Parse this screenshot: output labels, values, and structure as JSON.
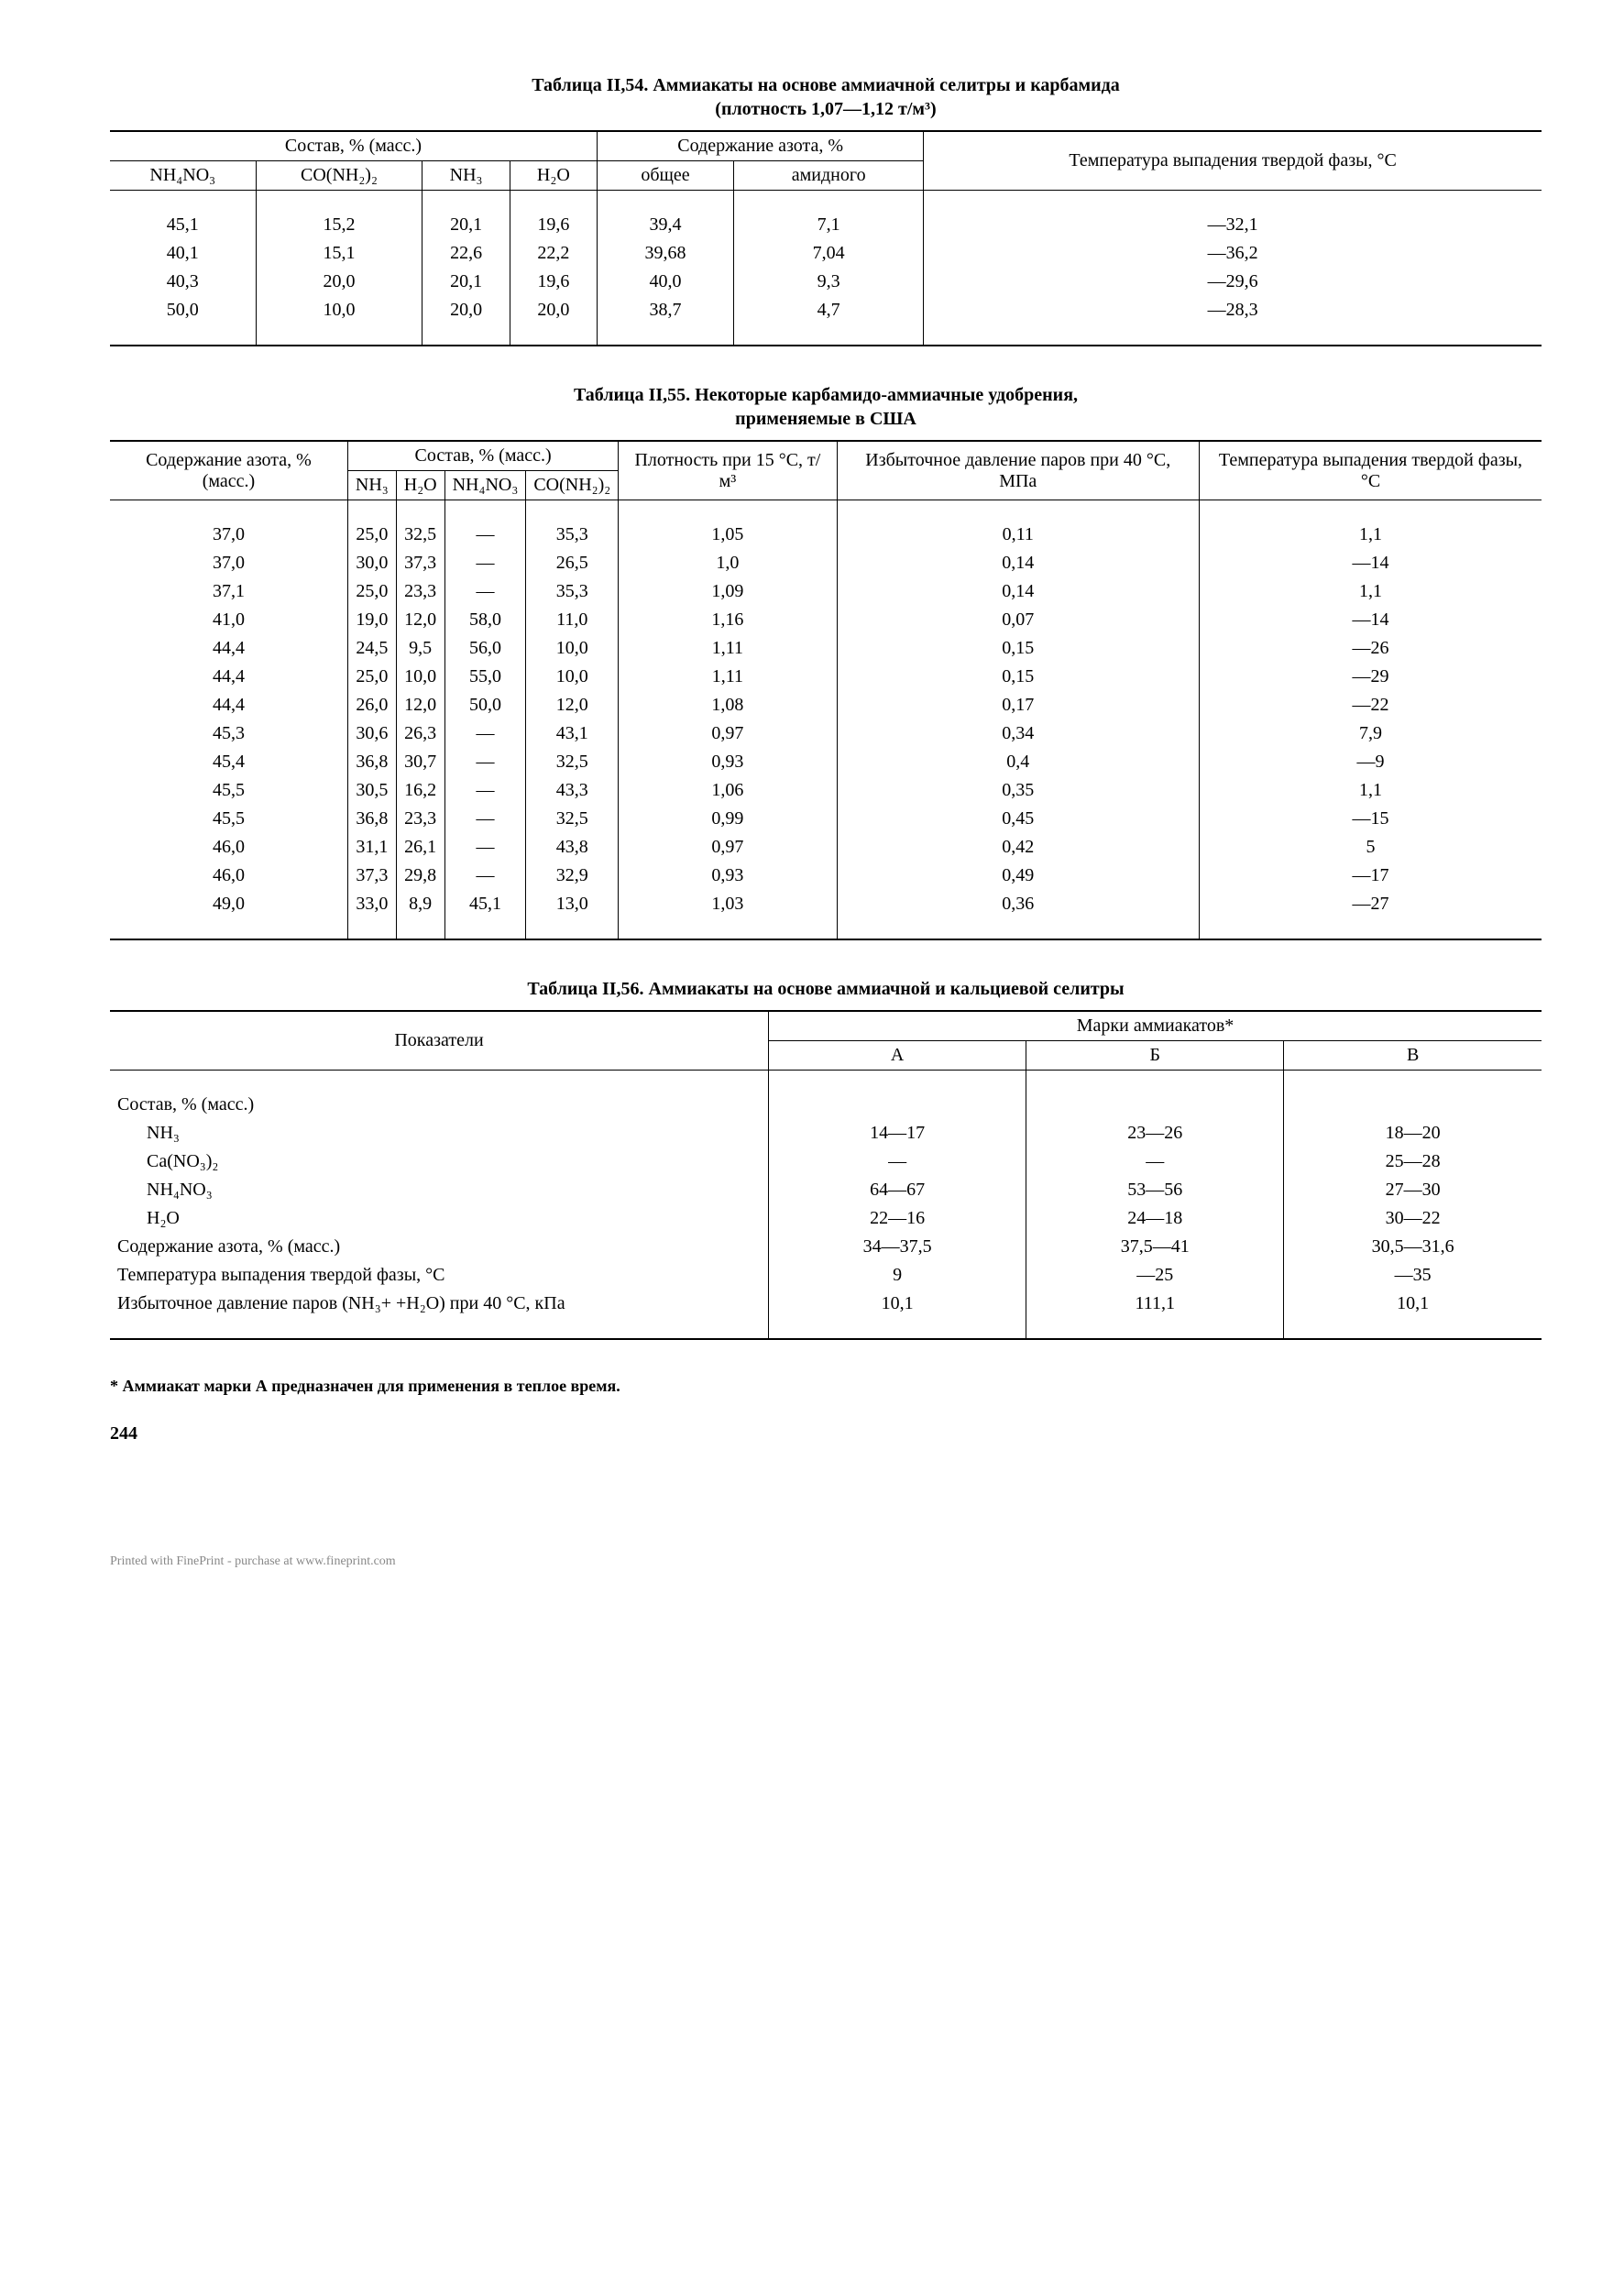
{
  "page_number": "244",
  "footer_text": "Printed with FinePrint - purchase at www.fineprint.com",
  "t54": {
    "title_line1": "Таблица II,54. Аммиакаты на основе аммиачной селитры и карбамида",
    "title_line2": "(плотность 1,07—1,12 т/м³)",
    "headers": {
      "group_comp": "Состав, % (масс.)",
      "group_n": "Содержание азота, %",
      "temp": "Температура выпадения твердой фазы, °C",
      "c1": "NH₄NO₃",
      "c2": "CO(NH₂)₂",
      "c3": "NH₃",
      "c4": "H₂O",
      "c5": "общее",
      "c6": "амидного"
    },
    "rows": [
      [
        "45,1",
        "15,2",
        "20,1",
        "19,6",
        "39,4",
        "7,1",
        "—32,1"
      ],
      [
        "40,1",
        "15,1",
        "22,6",
        "22,2",
        "39,68",
        "7,04",
        "—36,2"
      ],
      [
        "40,3",
        "20,0",
        "20,1",
        "19,6",
        "40,0",
        "9,3",
        "—29,6"
      ],
      [
        "50,0",
        "10,0",
        "20,0",
        "20,0",
        "38,7",
        "4,7",
        "—28,3"
      ]
    ]
  },
  "t55": {
    "title_line1": "Таблица II,55. Некоторые карбамидо-аммиачные удобрения,",
    "title_line2": "применяемые в США",
    "headers": {
      "nmass": "Содержание азота, % (масс.)",
      "group_comp": "Состав, % (масс.)",
      "c1": "NH₃",
      "c2": "H₂O",
      "c3": "NH₄NO₃",
      "c4": "CO(NH₂)₂",
      "dens": "Плотность при 15 °C, т/м³",
      "press": "Избыточное давление паров при 40 °C, МПа",
      "temp": "Температура выпадения твердой фазы, °C"
    },
    "rows": [
      [
        "37,0",
        "25,0",
        "32,5",
        "—",
        "35,3",
        "1,05",
        "0,11",
        "1,1"
      ],
      [
        "37,0",
        "30,0",
        "37,3",
        "—",
        "26,5",
        "1,0",
        "0,14",
        "—14"
      ],
      [
        "37,1",
        "25,0",
        "23,3",
        "—",
        "35,3",
        "1,09",
        "0,14",
        "1,1"
      ],
      [
        "41,0",
        "19,0",
        "12,0",
        "58,0",
        "11,0",
        "1,16",
        "0,07",
        "—14"
      ],
      [
        "44,4",
        "24,5",
        "9,5",
        "56,0",
        "10,0",
        "1,11",
        "0,15",
        "—26"
      ],
      [
        "44,4",
        "25,0",
        "10,0",
        "55,0",
        "10,0",
        "1,11",
        "0,15",
        "—29"
      ],
      [
        "44,4",
        "26,0",
        "12,0",
        "50,0",
        "12,0",
        "1,08",
        "0,17",
        "—22"
      ],
      [
        "45,3",
        "30,6",
        "26,3",
        "—",
        "43,1",
        "0,97",
        "0,34",
        "7,9"
      ],
      [
        "45,4",
        "36,8",
        "30,7",
        "—",
        "32,5",
        "0,93",
        "0,4",
        "—9"
      ],
      [
        "45,5",
        "30,5",
        "16,2",
        "—",
        "43,3",
        "1,06",
        "0,35",
        "1,1"
      ],
      [
        "45,5",
        "36,8",
        "23,3",
        "—",
        "32,5",
        "0,99",
        "0,45",
        "—15"
      ],
      [
        "46,0",
        "31,1",
        "26,1",
        "—",
        "43,8",
        "0,97",
        "0,42",
        "5"
      ],
      [
        "46,0",
        "37,3",
        "29,8",
        "—",
        "32,9",
        "0,93",
        "0,49",
        "—17"
      ],
      [
        "49,0",
        "33,0",
        "8,9",
        "45,1",
        "13,0",
        "1,03",
        "0,36",
        "—27"
      ]
    ]
  },
  "t56": {
    "title": "Таблица II,56. Аммиакаты на основе аммиачной и кальциевой селитры",
    "headers": {
      "ind": "Показатели",
      "group": "Марки аммиакатов*",
      "a": "А",
      "b": "Б",
      "v": "В"
    },
    "indicators": {
      "comp": "Состав, % (масс.)",
      "nh3": "NH₃",
      "cano3": "Ca(NO₃)₂",
      "nh4no3": "NH₄NO₃",
      "h2o": "H₂O",
      "ncont": "Содержание азота, % (масс.)",
      "temp": "Температура выпадения твердой фазы, °C",
      "press": "Избыточное давление паров (NH₃+ +H₂O) при 40 °C, кПа"
    },
    "data": {
      "nh3": [
        "14—17",
        "23—26",
        "18—20"
      ],
      "cano3": [
        "—",
        "—",
        "25—28"
      ],
      "nh4no3": [
        "64—67",
        "53—56",
        "27—30"
      ],
      "h2o": [
        "22—16",
        "24—18",
        "30—22"
      ],
      "ncont": [
        "34—37,5",
        "37,5—41",
        "30,5—31,6"
      ],
      "temp": [
        "9",
        "—25",
        "—35"
      ],
      "press": [
        "10,1",
        "111,1",
        "10,1"
      ]
    },
    "footnote": "* Аммиакат марки А предназначен для применения в теплое время."
  }
}
